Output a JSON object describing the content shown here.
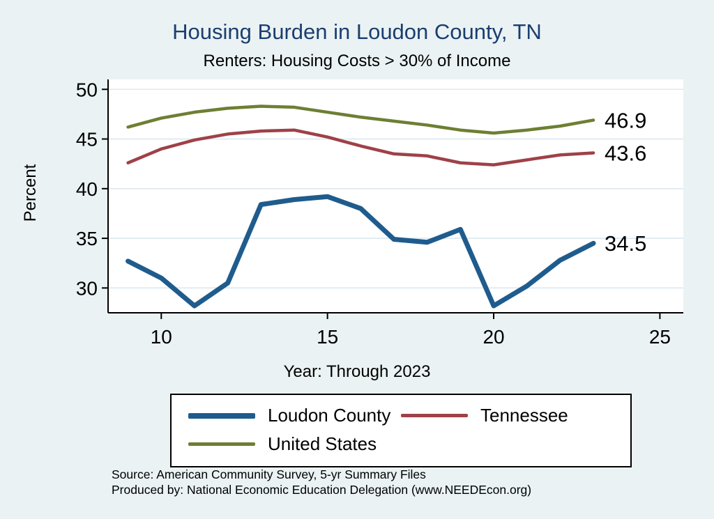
{
  "header": {
    "title": "Housing Burden in Loudon County, TN",
    "subtitle": "Renters: Housing Costs > 30% of Income"
  },
  "colors": {
    "background": "#eaf2f3",
    "title": "#1b3e70",
    "grid": "#dce8f0",
    "loudon_county": "#1f5c8d",
    "tennessee": "#9e4148",
    "united_states": "#6d7f33"
  },
  "chart_data": {
    "type": "line",
    "title": "Housing Burden in Loudon County, TN",
    "subtitle": "Renters: Housing Costs > 30% of Income",
    "xlabel": "Year: Through 2023",
    "ylabel": "Percent",
    "x": [
      9,
      10,
      11,
      12,
      13,
      14,
      15,
      16,
      17,
      18,
      19,
      20,
      21,
      22,
      23
    ],
    "xticks": [
      10,
      15,
      20,
      25
    ],
    "yticks": [
      30,
      35,
      40,
      45,
      50
    ],
    "xlim": [
      8.4,
      25.6
    ],
    "ylim": [
      27.5,
      51
    ],
    "grid": "horizontal",
    "legend_position": "bottom",
    "series": [
      {
        "name": "Loudon County",
        "color": "#1f5c8d",
        "width": 7,
        "values": [
          32.7,
          31.0,
          28.2,
          30.5,
          38.4,
          38.9,
          39.2,
          38.0,
          34.9,
          34.6,
          35.9,
          28.2,
          30.2,
          32.8,
          34.5
        ]
      },
      {
        "name": "Tennessee",
        "color": "#9e4148",
        "width": 4.5,
        "values": [
          42.6,
          44.0,
          44.9,
          45.5,
          45.8,
          45.9,
          45.2,
          44.3,
          43.5,
          43.3,
          42.6,
          42.4,
          42.9,
          43.4,
          43.6
        ]
      },
      {
        "name": "United States",
        "color": "#6d7f33",
        "width": 4.5,
        "values": [
          46.2,
          47.1,
          47.7,
          48.1,
          48.3,
          48.2,
          47.7,
          47.2,
          46.8,
          46.4,
          45.9,
          45.6,
          45.9,
          46.3,
          46.9
        ]
      }
    ],
    "end_labels": [
      "46.9",
      "43.6",
      "34.5"
    ]
  },
  "footer": {
    "source_line1": "Source: American Community Survey, 5-yr Summary Files",
    "source_line2": "Produced by: National Economic Education Delegation (www.NEEDEcon.org)"
  }
}
